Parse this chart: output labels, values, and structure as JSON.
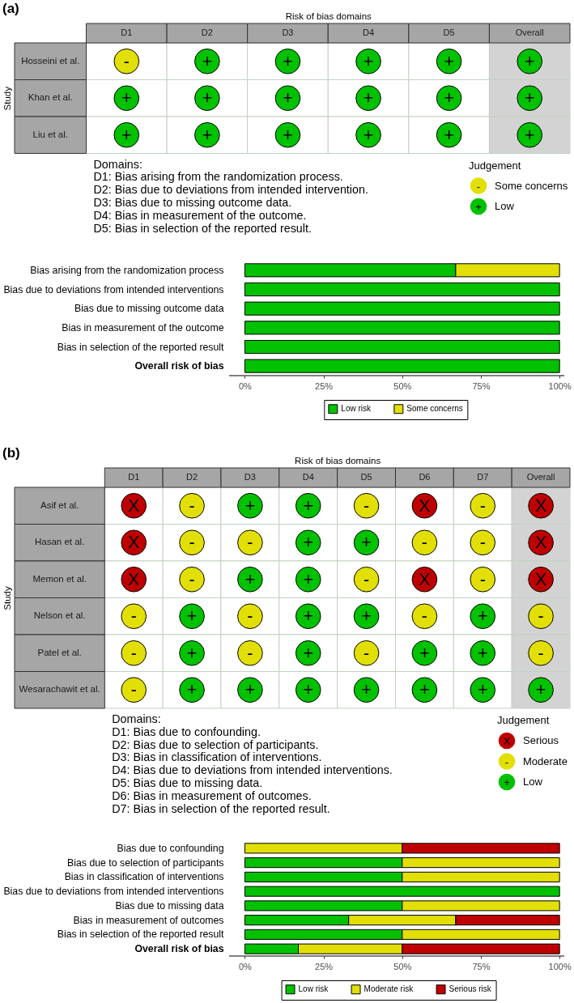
{
  "chart_data": [
    {
      "type": "heatmap",
      "title": "(a)",
      "xlabel": "Risk of bias domains",
      "ylabel": "Study",
      "categories": [
        "D1",
        "D2",
        "D3",
        "D4",
        "D5",
        "Overall"
      ],
      "y_categories": [
        "Hosseini et al.",
        "Khan et al.",
        "Liu et al."
      ],
      "cells": [
        [
          "-",
          "+",
          "+",
          "+",
          "+",
          "+"
        ],
        [
          "+",
          "+",
          "+",
          "+",
          "+",
          "+"
        ],
        [
          "+",
          "+",
          "+",
          "+",
          "+",
          "+"
        ]
      ],
      "colors": [
        [
          "#e2df07",
          "#02c100",
          "#02c100",
          "#02c100",
          "#02c100",
          "#02c100"
        ],
        [
          "#02c100",
          "#02c100",
          "#02c100",
          "#02c100",
          "#02c100",
          "#02c100"
        ],
        [
          "#02c100",
          "#02c100",
          "#02c100",
          "#02c100",
          "#02c100",
          "#02c100"
        ]
      ],
      "series": [
        {
          "name": "Some concerns",
          "color": "#e2df07",
          "values": [
            null,
            null,
            null,
            null,
            null,
            null
          ]
        },
        {
          "name": "Low",
          "color": "#02c100",
          "values": [
            null,
            null,
            null,
            null,
            null,
            null
          ]
        }
      ],
      "legend_title": "Judgement",
      "legend": "bottom right",
      "annotations": [
        "Domains:",
        "D1: Bias arising from the randomization process.",
        "D2: Bias due to deviations from intended intervention.",
        "D3: Bias due to missing outcome data.",
        "D4: Bias in measurement of the outcome.",
        "D5: Bias in selection of the reported result."
      ]
    },
    {
      "type": "bar",
      "orientation": "horizontal",
      "stacked": true,
      "categories": [
        "Bias arising from the randomization process",
        "Bias due to deviations from intended interventions",
        "Bias due to missing outcome data",
        "Bias in measurement of the outcome",
        "Bias in selection of the reported result",
        "Overall risk of bias"
      ],
      "series": [
        {
          "name": "Low risk",
          "color": "#02c100",
          "values": [
            67,
            100,
            100,
            100,
            100,
            100
          ]
        },
        {
          "name": "Some concerns",
          "color": "#e2df07",
          "values": [
            33,
            null,
            null,
            null,
            null,
            null
          ]
        }
      ],
      "xlim": [
        -5,
        101.5
      ],
      "xticks": [
        {
          "value": 0,
          "label": "0%"
        },
        {
          "value": 25,
          "label": "25%"
        },
        {
          "value": 50,
          "label": "50%"
        },
        {
          "value": 75,
          "label": "75%"
        },
        {
          "value": 100,
          "label": "100%"
        }
      ],
      "legend": "bottom"
    },
    {
      "type": "heatmap",
      "title": "(b)",
      "xlabel": "Risk of bias domains",
      "ylabel": "Study",
      "categories": [
        "D1",
        "D2",
        "D3",
        "D4",
        "D5",
        "D6",
        "D7",
        "Overall"
      ],
      "y_categories": [
        "Asif et al.",
        "Hasan et al.",
        "Memon et al.",
        "Nelson et al.",
        "Patel et al.",
        "Wesarachawit et al."
      ],
      "cells": [
        [
          "X",
          "-",
          "+",
          "+",
          "-",
          "X",
          "-",
          "X"
        ],
        [
          "X",
          "-",
          "-",
          "+",
          "+",
          "-",
          "-",
          "X"
        ],
        [
          "X",
          "-",
          "+",
          "+",
          "-",
          "X",
          "-",
          "X"
        ],
        [
          "-",
          "+",
          "-",
          "+",
          "+",
          "-",
          "+",
          "-"
        ],
        [
          "-",
          "+",
          "-",
          "+",
          "-",
          "+",
          "+",
          "-"
        ],
        [
          "-",
          "+",
          "+",
          "+",
          "+",
          "+",
          "+",
          "+"
        ]
      ],
      "colors": [
        [
          "#bf0000",
          "#e2df07",
          "#02c100",
          "#02c100",
          "#e2df07",
          "#bf0000",
          "#e2df07",
          "#bf0000"
        ],
        [
          "#bf0000",
          "#e2df07",
          "#e2df07",
          "#02c100",
          "#02c100",
          "#e2df07",
          "#e2df07",
          "#bf0000"
        ],
        [
          "#bf0000",
          "#e2df07",
          "#02c100",
          "#02c100",
          "#e2df07",
          "#bf0000",
          "#e2df07",
          "#bf0000"
        ],
        [
          "#e2df07",
          "#02c100",
          "#e2df07",
          "#02c100",
          "#02c100",
          "#e2df07",
          "#02c100",
          "#e2df07"
        ],
        [
          "#e2df07",
          "#02c100",
          "#e2df07",
          "#02c100",
          "#e2df07",
          "#02c100",
          "#02c100",
          "#e2df07"
        ],
        [
          "#e2df07",
          "#02c100",
          "#02c100",
          "#02c100",
          "#02c100",
          "#02c100",
          "#02c100",
          "#02c100"
        ]
      ],
      "series": [
        {
          "name": "Serious",
          "color": "#bf0000",
          "values": [
            null,
            null,
            null,
            null,
            null,
            null,
            null,
            null
          ]
        },
        {
          "name": "Moderate",
          "color": "#e2df07",
          "values": [
            null,
            null,
            null,
            null,
            null,
            null,
            null,
            null
          ]
        },
        {
          "name": "Low",
          "color": "#02c100",
          "values": [
            null,
            null,
            null,
            null,
            null,
            null,
            null,
            null
          ]
        }
      ],
      "legend_title": "Judgement",
      "legend": "bottom right",
      "annotations": [
        "Domains:",
        "D1: Bias due to confounding.",
        "D2: Bias due to selection of participants.",
        "D3: Bias in classification of interventions.",
        "D4: Bias due to deviations from intended interventions.",
        "D5: Bias due to missing data.",
        "D6: Bias in measurement of outcomes.",
        "D7: Bias in selection of the reported result."
      ]
    },
    {
      "type": "bar",
      "orientation": "horizontal",
      "stacked": true,
      "categories": [
        "Bias due to confounding",
        "Bias due to selection of participants",
        "Bias in classification of interventions",
        "Bias due to deviations from intended interventions",
        "Bias due to missing data",
        "Bias in measurement of outcomes",
        "Bias in selection of the reported result",
        "Overall risk of bias"
      ],
      "series": [
        {
          "name": "Low risk",
          "color": "#02c100",
          "values": [
            null,
            50,
            50,
            100,
            50,
            33,
            50,
            17
          ]
        },
        {
          "name": "Moderate risk",
          "color": "#e2df07",
          "values": [
            50,
            50,
            50,
            null,
            50,
            34,
            50,
            33
          ]
        },
        {
          "name": "Serious risk",
          "color": "#bf0000",
          "values": [
            50,
            null,
            null,
            null,
            null,
            33,
            null,
            50
          ]
        }
      ],
      "xlim": [
        -5,
        101.5
      ],
      "xticks": [
        {
          "value": 0,
          "label": "0%"
        },
        {
          "value": 25,
          "label": "25%"
        },
        {
          "value": 50,
          "label": "50%"
        },
        {
          "value": 75,
          "label": "75%"
        },
        {
          "value": 100,
          "label": "100%"
        }
      ],
      "legend": "bottom"
    }
  ]
}
